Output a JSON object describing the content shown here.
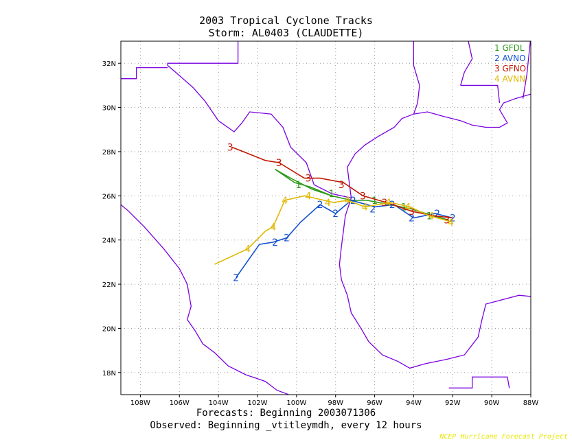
{
  "title_line1": "2003 Tropical Cyclone Tracks",
  "title_line2": "Storm: AL0403 (CLAUDETTE)",
  "caption_line1": "Forecasts: Beginning 2003071306",
  "caption_line2": "Observed: Beginning _vtitleymdh, every 12 hours",
  "credit": "NCEP Hurricane Forecast Project",
  "colors": {
    "coast": "#7a00e0",
    "grid": "#9a9a9a",
    "GFDL": "#2e9a1a",
    "AVNO": "#1050d0",
    "GFNO": "#c01800",
    "AVNN": "#e0b800"
  },
  "chart_data": {
    "type": "map-tracks",
    "lon_range": [
      -109,
      -88
    ],
    "lat_range": [
      17,
      33
    ],
    "lon_ticks": [
      "108W",
      "106W",
      "104W",
      "102W",
      "100W",
      "98W",
      "96W",
      "94W",
      "92W",
      "90W",
      "88W"
    ],
    "lat_ticks": [
      "18N",
      "20N",
      "22N",
      "24N",
      "26N",
      "28N",
      "30N",
      "32N"
    ],
    "grid": true,
    "legend_position": "top-right",
    "series": [
      {
        "number": "1",
        "name": "GFDL",
        "color_key": "GFDL",
        "points": [
          [
            -92.2,
            24.9
          ],
          [
            -93.0,
            25.1
          ],
          [
            -94.1,
            25.4
          ],
          [
            -95.2,
            25.6
          ],
          [
            -96.4,
            25.8
          ],
          [
            -97.2,
            25.8
          ],
          [
            -98.2,
            26.0
          ],
          [
            -99.3,
            26.4
          ],
          [
            -100.1,
            26.6
          ],
          [
            -101.1,
            27.2
          ],
          [
            -100.3,
            26.8
          ],
          [
            -99.2,
            26.3
          ],
          [
            -98.2,
            26.0
          ]
        ],
        "labels": [
          [
            -99.9,
            26.5
          ],
          [
            -98.2,
            26.1
          ],
          [
            -96.0,
            25.8
          ],
          [
            -94.5,
            25.5
          ],
          [
            -93.2,
            25.1
          ]
        ]
      },
      {
        "number": "2",
        "name": "AVNO",
        "color_key": "AVNO",
        "points": [
          [
            -92.0,
            25.0
          ],
          [
            -92.9,
            25.2
          ],
          [
            -94.0,
            25.0
          ],
          [
            -95.0,
            25.6
          ],
          [
            -96.0,
            25.5
          ],
          [
            -97.2,
            25.8
          ],
          [
            -98.0,
            25.2
          ],
          [
            -98.8,
            25.6
          ],
          [
            -99.8,
            24.8
          ],
          [
            -100.5,
            24.1
          ],
          [
            -101.2,
            23.9
          ],
          [
            -101.9,
            23.8
          ],
          [
            -103.1,
            22.3
          ]
        ],
        "labels": [
          [
            -92.0,
            25.0
          ],
          [
            -92.8,
            25.2
          ],
          [
            -94.1,
            25.0
          ],
          [
            -95.1,
            25.6
          ],
          [
            -96.1,
            25.4
          ],
          [
            -97.1,
            25.8
          ],
          [
            -98.0,
            25.2
          ],
          [
            -98.8,
            25.6
          ],
          [
            -100.5,
            24.1
          ],
          [
            -101.1,
            23.9
          ],
          [
            -103.1,
            22.3
          ]
        ]
      },
      {
        "number": "3",
        "name": "GFNO",
        "color_key": "GFNO",
        "points": [
          [
            -92.0,
            25.0
          ],
          [
            -93.0,
            25.1
          ],
          [
            -94.1,
            25.3
          ],
          [
            -95.4,
            25.7
          ],
          [
            -96.6,
            26.0
          ],
          [
            -97.6,
            26.6
          ],
          [
            -98.8,
            26.8
          ],
          [
            -99.6,
            26.8
          ],
          [
            -100.9,
            27.5
          ],
          [
            -101.6,
            27.6
          ],
          [
            -103.3,
            28.2
          ]
        ],
        "labels": [
          [
            -92.3,
            24.9
          ],
          [
            -94.1,
            25.3
          ],
          [
            -95.5,
            25.7
          ],
          [
            -96.6,
            26.0
          ],
          [
            -97.7,
            26.5
          ],
          [
            -99.4,
            26.8
          ],
          [
            -100.9,
            27.5
          ],
          [
            -103.4,
            28.2
          ]
        ]
      },
      {
        "number": "4",
        "name": "AVNN",
        "color_key": "AVNN",
        "points": [
          [
            -92.0,
            24.8
          ],
          [
            -93.2,
            25.1
          ],
          [
            -94.2,
            25.5
          ],
          [
            -95.2,
            25.7
          ],
          [
            -96.5,
            25.5
          ],
          [
            -97.4,
            25.8
          ],
          [
            -98.1,
            25.7
          ],
          [
            -99.1,
            25.9
          ],
          [
            -99.6,
            26.0
          ],
          [
            -100.6,
            25.8
          ],
          [
            -101.2,
            24.6
          ],
          [
            -101.6,
            24.4
          ],
          [
            -102.5,
            23.6
          ],
          [
            -104.2,
            22.9
          ]
        ],
        "labels": [
          [
            -92.1,
            24.8
          ],
          [
            -93.1,
            25.1
          ],
          [
            -94.3,
            25.5
          ],
          [
            -95.3,
            25.7
          ],
          [
            -96.5,
            25.5
          ],
          [
            -97.4,
            25.8
          ],
          [
            -98.4,
            25.7
          ],
          [
            -99.4,
            26.0
          ],
          [
            -100.6,
            25.8
          ],
          [
            -101.2,
            24.6
          ],
          [
            -102.5,
            23.6
          ]
        ]
      }
    ]
  }
}
